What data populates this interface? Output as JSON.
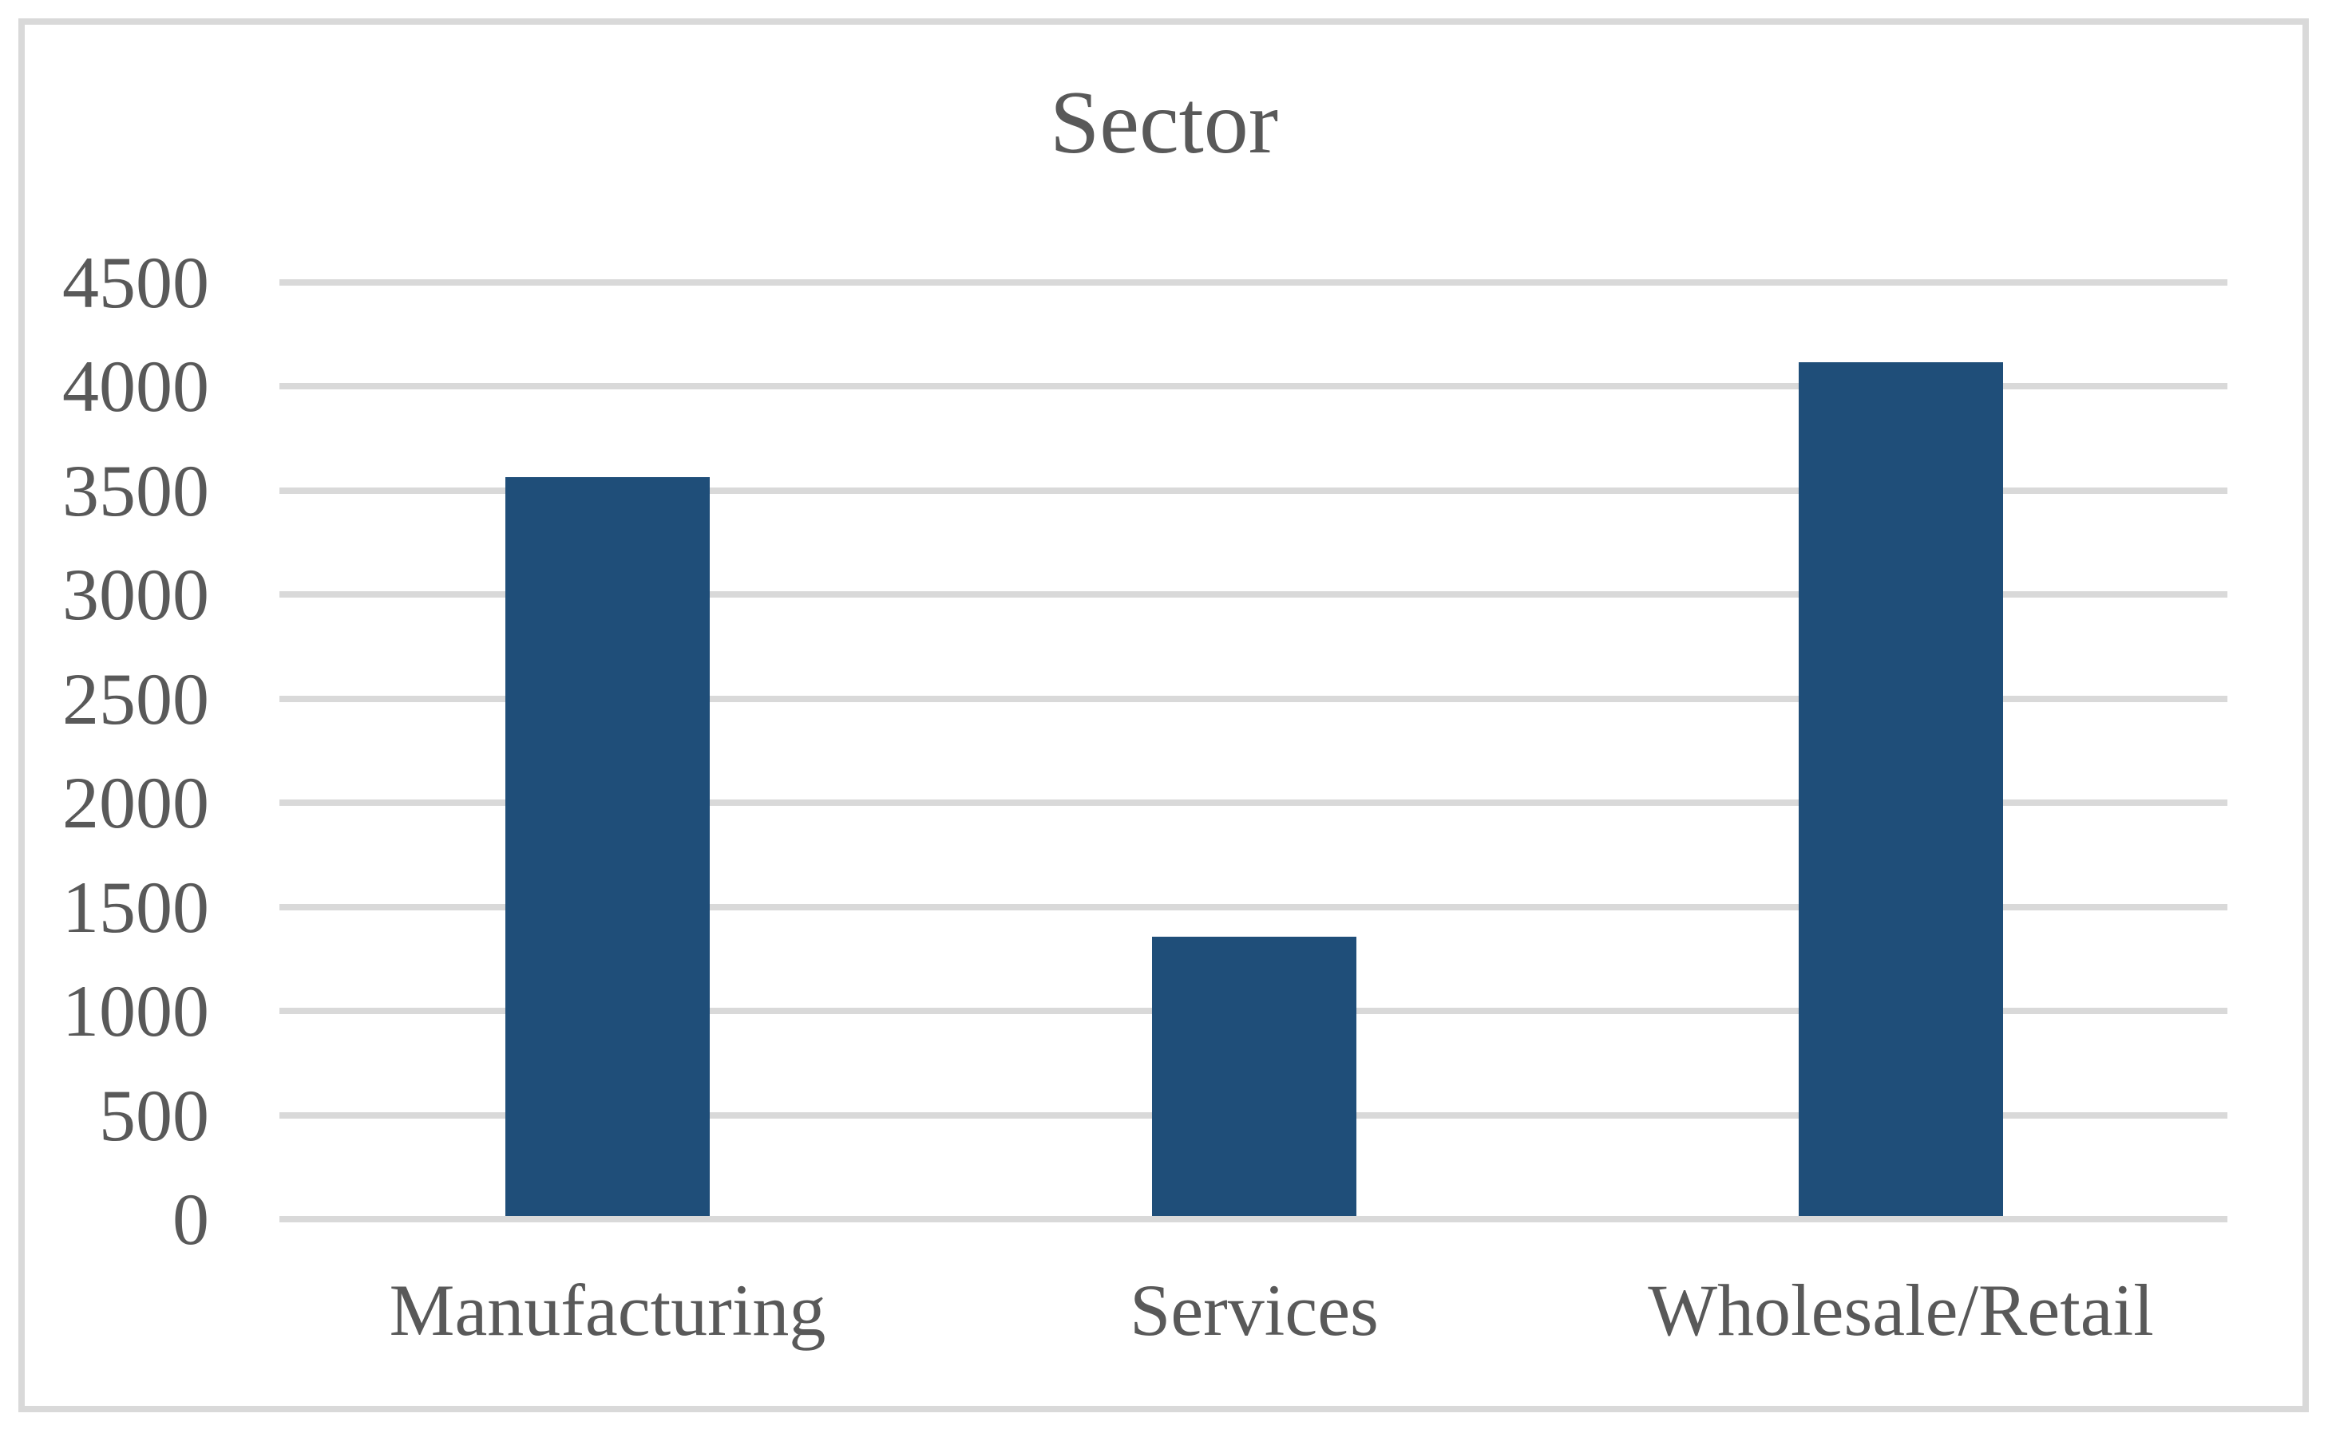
{
  "figure": {
    "background": "#FFFFFF"
  },
  "chart_data": {
    "type": "bar",
    "title": "Sector",
    "categories": [
      "Manufacturing",
      "Services",
      "Wholesale/Retail"
    ],
    "values": [
      3550,
      1340,
      4100
    ],
    "xlabel": "",
    "ylabel": "",
    "ylim": [
      0,
      4500
    ],
    "yticks": [
      0,
      500,
      1000,
      1500,
      2000,
      2500,
      3000,
      3500,
      4000,
      4500
    ],
    "grid": "horizontal",
    "legend": "none",
    "colors": {
      "bar": "#1F4E79",
      "gridline": "#D9D9D9",
      "tick": "#D9D9D9",
      "frame_border": "#D9D9D9",
      "text": "#595959"
    }
  }
}
